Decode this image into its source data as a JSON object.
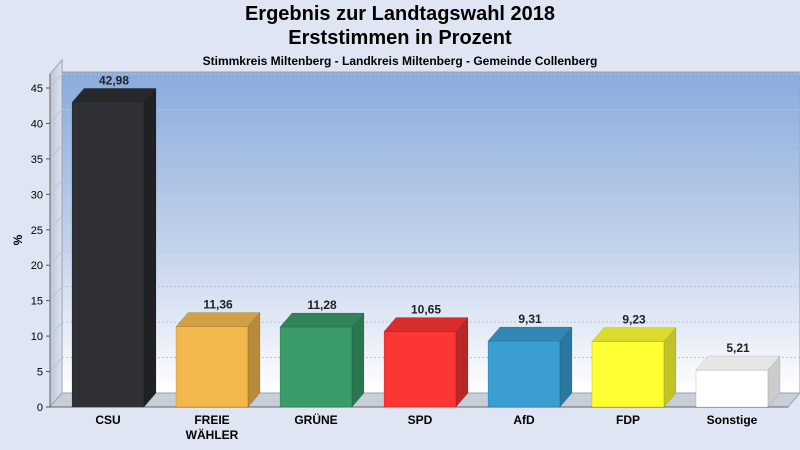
{
  "header": {
    "title_line1": "Ergebnis zur Landtagswahl 2018",
    "title_line2": "Erststimmen in Prozent",
    "subtitle": "Stimmkreis Miltenberg - Landkreis Miltenberg - Gemeinde Collenberg"
  },
  "chart_data": {
    "type": "bar",
    "title": "Ergebnis zur Landtagswahl 2018 Erststimmen in Prozent",
    "subtitle": "Stimmkreis Miltenberg - Landkreis Miltenberg - Gemeinde Collenberg",
    "xlabel": "",
    "ylabel": "%",
    "ylim": [
      0,
      45
    ],
    "yticks": [
      0,
      5,
      10,
      15,
      20,
      25,
      30,
      35,
      40,
      45
    ],
    "grid": true,
    "categories": [
      [
        "CSU"
      ],
      [
        "FREIE",
        "WÄHLER"
      ],
      [
        "GRÜNE"
      ],
      [
        "SPD"
      ],
      [
        "AfD"
      ],
      [
        "FDP"
      ],
      [
        "Sonstige"
      ]
    ],
    "values": [
      42.98,
      11.36,
      11.28,
      10.65,
      9.31,
      9.23,
      5.21
    ],
    "value_labels": [
      "42,98",
      "11,36",
      "11,28",
      "10,65",
      "9,31",
      "9,23",
      "5,21"
    ],
    "colors": [
      "#2f3136",
      "#f2b84e",
      "#3a9c68",
      "#fc3535",
      "#3a9ed1",
      "#ffff33",
      "#ffffff"
    ],
    "side_colors": [
      "#1f2125",
      "#b88a39",
      "#2a7650",
      "#b82727",
      "#2a77a0",
      "#c2c226",
      "#cccccc"
    ],
    "top_colors": [
      "#26282c",
      "#d19f44",
      "#318459",
      "#d92d2d",
      "#3288b5",
      "#dbdb2c",
      "#e6e6e6"
    ]
  }
}
